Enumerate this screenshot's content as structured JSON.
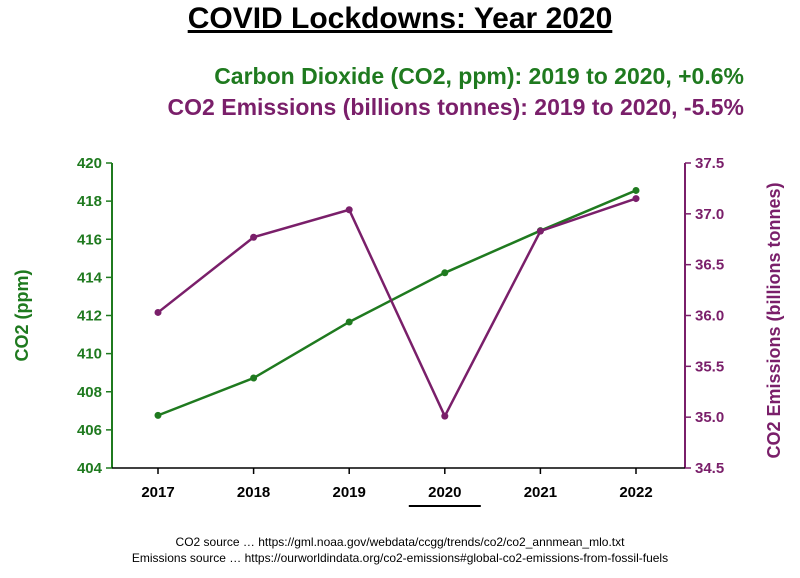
{
  "title": "COVID Lockdowns: Year 2020",
  "subtitle_co2": "Carbon Dioxide (CO2, ppm): 2019 to 2020, +0.6%",
  "subtitle_emissions": "CO2 Emissions (billions tonnes): 2019 to 2020, -5.5%",
  "sources": {
    "co2": "CO2 source … https://gml.noaa.gov/webdata/ccgg/trends/co2/co2_annmean_mlo.txt",
    "emissions": "Emissions source … https://ourworldindata.org/co2-emissions#global-co2-emissions-from-fossil-fuels"
  },
  "colors": {
    "co2": "#1f7a1f",
    "emissions": "#7a1f6a",
    "grid": "#000000"
  },
  "chart_data": {
    "type": "line",
    "categories": [
      "2017",
      "2018",
      "2019",
      "2020",
      "2021",
      "2022"
    ],
    "highlighted_category": "2020",
    "left_axis": {
      "label": "CO2 (ppm)",
      "ylim": [
        404,
        420
      ],
      "ticks": [
        "404",
        "406",
        "408",
        "410",
        "412",
        "414",
        "416",
        "418",
        "420"
      ]
    },
    "right_axis": {
      "label": "CO2 Emissions (billions tonnes)",
      "ylim": [
        34.5,
        37.5
      ],
      "ticks": [
        "34.5",
        "35.0",
        "35.5",
        "36.0",
        "36.5",
        "37.0",
        "37.5"
      ]
    },
    "series": [
      {
        "axis": "left",
        "color": "#1f7a1f",
        "values": [
          406.76,
          408.72,
          411.66,
          414.24,
          416.45,
          418.56
        ]
      },
      {
        "axis": "right",
        "color": "#7a1f6a",
        "values": [
          36.03,
          36.77,
          37.04,
          35.01,
          36.83,
          37.15
        ]
      }
    ],
    "grid": false,
    "legend": "none"
  }
}
